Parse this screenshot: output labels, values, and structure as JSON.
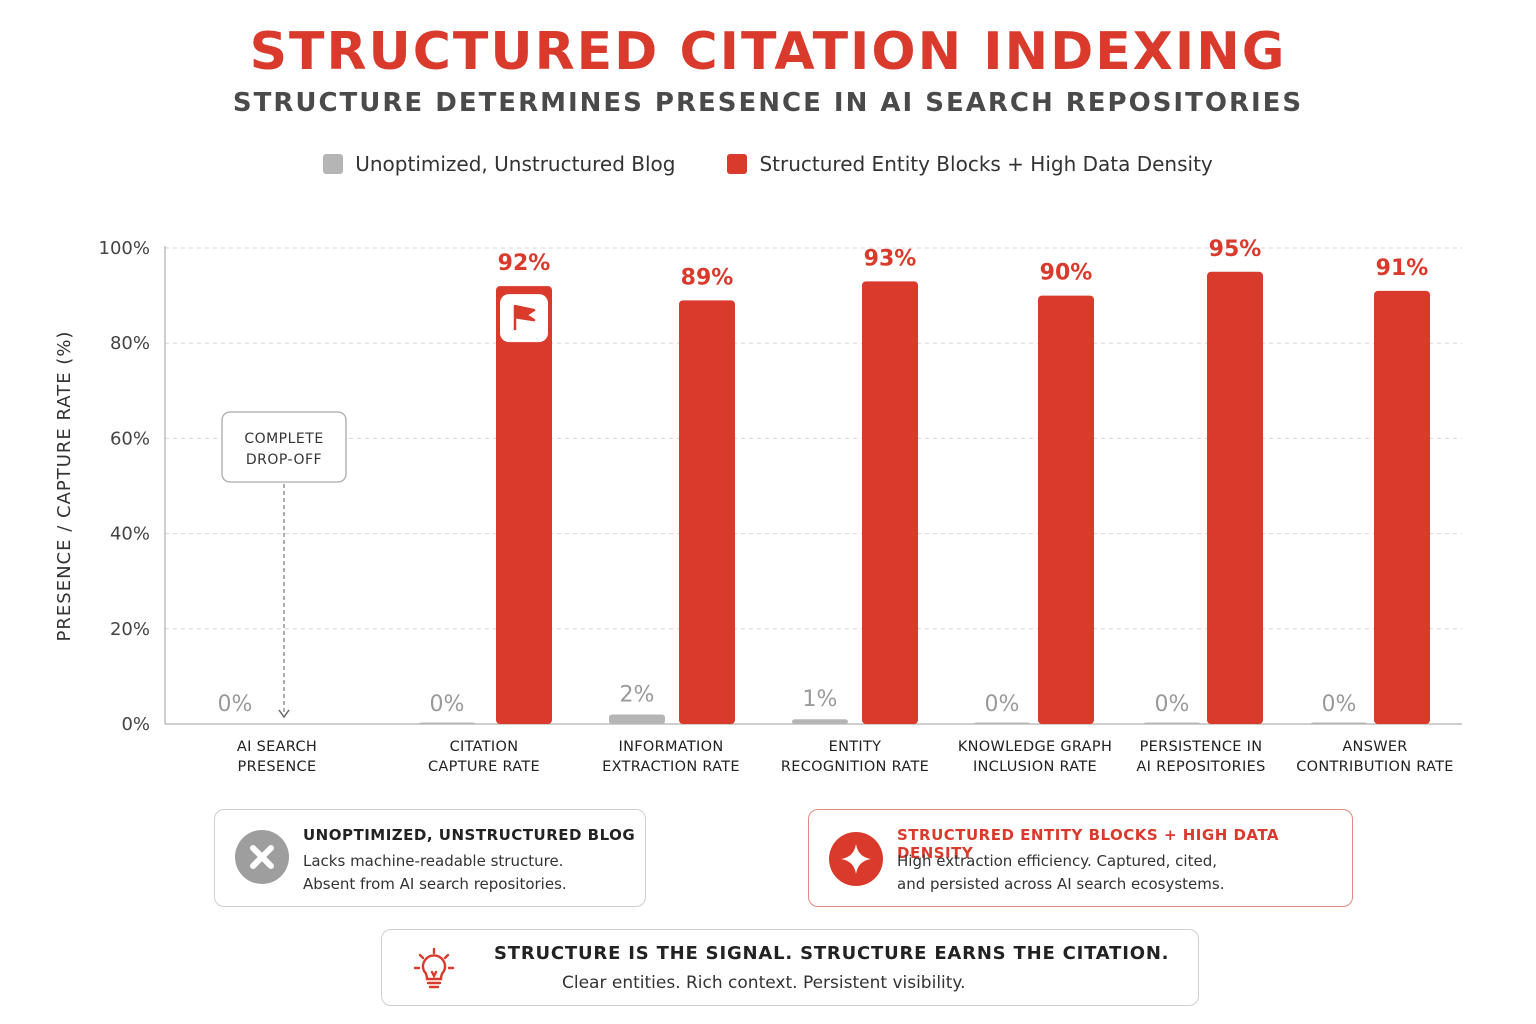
{
  "title": "STRUCTURED CITATION INDEXING",
  "subtitle": "STRUCTURE DETERMINES PRESENCE IN AI SEARCH REPOSITORIES",
  "colors": {
    "accent": "#d93a2b",
    "gray": "#b5b5b5",
    "dark_text": "#4a4a4a"
  },
  "chart_data": {
    "type": "bar",
    "title": "STRUCTURED CITATION INDEXING",
    "subtitle": "STRUCTURE DETERMINES PRESENCE IN AI SEARCH REPOSITORIES",
    "ylabel": "PRESENCE / CAPTURE RATE (%)",
    "xlabel": "",
    "ylim": [
      0,
      100
    ],
    "yticks": [
      "0%",
      "20%",
      "40%",
      "60%",
      "80%",
      "100%"
    ],
    "grid": true,
    "legend_position": "top-center",
    "categories": [
      "AI SEARCH\nPRESENCE",
      "CITATION\nCAPTURE RATE",
      "INFORMATION\nEXTRACTION RATE",
      "ENTITY\nRECOGNITION RATE",
      "KNOWLEDGE GRAPH\nINCLUSION RATE",
      "PERSISTENCE IN\nAI REPOSITORIES",
      "ANSWER\nCONTRIBUTION RATE"
    ],
    "series": [
      {
        "name": "Unoptimized, Unstructured Blog",
        "color": "#b5b5b5",
        "values": [
          0,
          0,
          2,
          1,
          0,
          0,
          0
        ],
        "labels": [
          "0%",
          "0%",
          "2%",
          "1%",
          "0%",
          "0%",
          "0%"
        ]
      },
      {
        "name": "Structured Entity Blocks + High Data Density",
        "color": "#d93a2b",
        "values": [
          null,
          92,
          89,
          93,
          90,
          95,
          91
        ],
        "labels": [
          "",
          "92%",
          "89%",
          "93%",
          "90%",
          "95%",
          "91%"
        ]
      }
    ],
    "annotations": [
      {
        "text": "COMPLETE\nDROP-OFF",
        "category_index": 0
      }
    ],
    "flag_icon": "flag-icon"
  },
  "cards": {
    "unoptimized": {
      "icon": "x-circle-icon",
      "title": "UNOPTIMIZED, UNSTRUCTURED BLOG",
      "line1": "Lacks machine-readable structure.",
      "line2": "Absent from AI search repositories."
    },
    "structured": {
      "icon": "sparkle-icon",
      "title": "STRUCTURED ENTITY BLOCKS + HIGH DATA DENSITY",
      "line1": "High extraction efficiency. Captured, cited,",
      "line2": "and persisted across AI search ecosystems."
    },
    "signal": {
      "icon": "lightbulb-icon",
      "title": "STRUCTURE IS THE SIGNAL. STRUCTURE EARNS THE CITATION.",
      "subtitle": "Clear entities. Rich context. Persistent visibility."
    }
  }
}
